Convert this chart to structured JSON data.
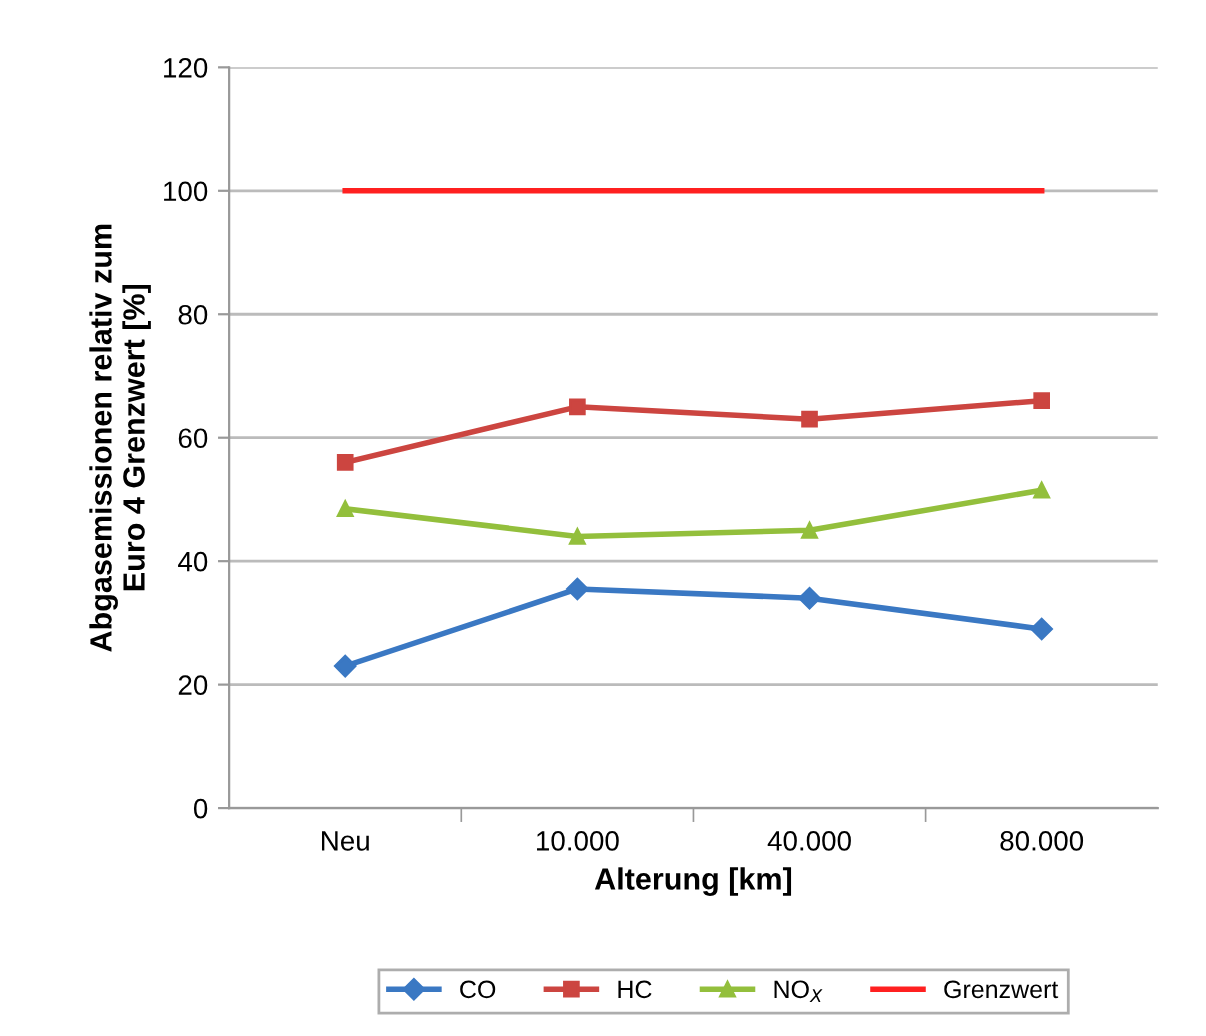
{
  "chart_data": {
    "type": "line",
    "xlabel": "Alterung [km]",
    "ylabel": "Abgasemissionen relativ zum\nEuro 4 Grenzwert [%]",
    "categories": [
      "Neu",
      "10.000",
      "40.000",
      "80.000"
    ],
    "series": [
      {
        "name": "CO",
        "color": "#3a78c3",
        "marker": "diamond",
        "values": [
          23,
          35.5,
          34,
          29
        ]
      },
      {
        "name": "HC",
        "color": "#cc4540",
        "marker": "square",
        "values": [
          56,
          65,
          63,
          66
        ]
      },
      {
        "name": "NO$_{X}$",
        "color": "#93bf3c",
        "marker": "triangle",
        "values": [
          48.5,
          44,
          45,
          51.5
        ]
      },
      {
        "name": "Grenzwert",
        "color": "#ff2020",
        "marker": "none",
        "values": [
          100,
          100,
          100,
          100
        ]
      }
    ],
    "ylim": [
      0,
      120
    ],
    "yticks": [
      0,
      20,
      40,
      60,
      80,
      100,
      120
    ],
    "grid": "y",
    "legend": "bottom"
  }
}
